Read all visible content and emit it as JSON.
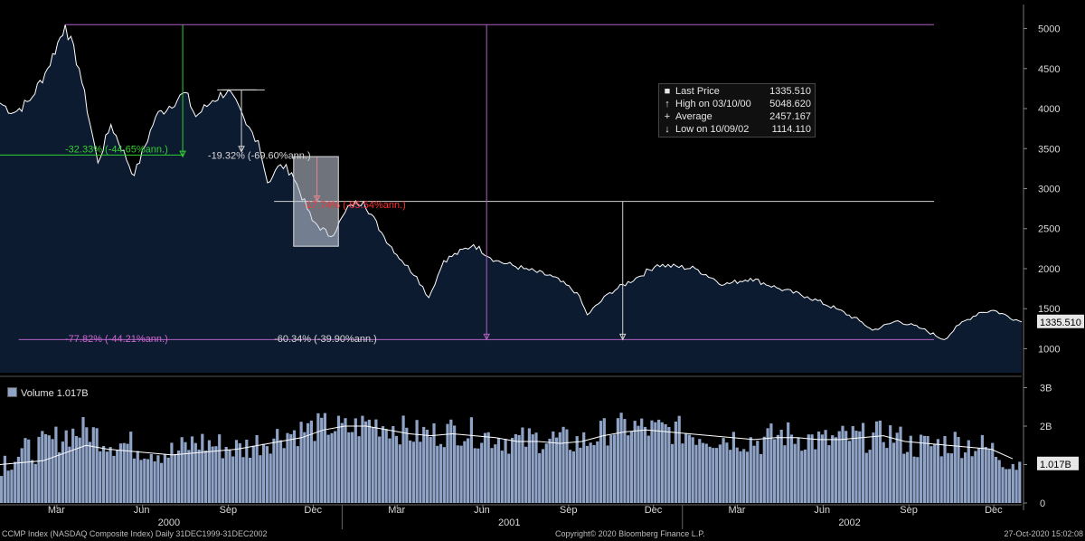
{
  "chart_data": [
    {
      "type": "area",
      "panel": "price",
      "ylim": [
        700,
        5300
      ],
      "yticks": [
        1000,
        1500,
        2000,
        2500,
        3000,
        3500,
        4000,
        4500,
        5000
      ],
      "last_value_label": "1335.510",
      "x_range": [
        "1999-12-31",
        "2002-12-31"
      ],
      "series": [
        {
          "name": "Last Price",
          "x": [
            "1999-12-31",
            "2000-01-15",
            "2000-02-01",
            "2000-02-20",
            "2000-03-10",
            "2000-03-25",
            "2000-04-14",
            "2000-04-28",
            "2000-05-23",
            "2000-06-15",
            "2000-07-17",
            "2000-07-28",
            "2000-08-15",
            "2000-09-01",
            "2000-09-20",
            "2000-10-03",
            "2000-10-13",
            "2000-10-27",
            "2000-11-08",
            "2000-11-30",
            "2000-12-20",
            "2001-01-10",
            "2001-01-24",
            "2001-02-15",
            "2001-03-06",
            "2001-03-22",
            "2001-04-04",
            "2001-04-20",
            "2001-05-22",
            "2001-06-15",
            "2001-07-15",
            "2001-08-15",
            "2001-09-10",
            "2001-09-21",
            "2001-10-15",
            "2001-11-15",
            "2001-12-05",
            "2002-01-15",
            "2002-02-15",
            "2002-03-15",
            "2002-04-15",
            "2002-05-15",
            "2002-06-15",
            "2002-07-10",
            "2002-07-24",
            "2002-08-20",
            "2002-09-15",
            "2002-10-09",
            "2002-10-25",
            "2002-11-15",
            "2002-12-01",
            "2002-12-31"
          ],
          "values": [
            4069,
            3950,
            4100,
            4500,
            5048,
            4500,
            3321,
            3800,
            3164,
            3900,
            4200,
            3900,
            4100,
            4234,
            3800,
            3600,
            3074,
            3300,
            3200,
            2600,
            2400,
            2800,
            2840,
            2400,
            2100,
            1900,
            1638,
            2100,
            2300,
            2100,
            2000,
            1900,
            1700,
            1423,
            1700,
            1900,
            2050,
            2000,
            1800,
            1880,
            1750,
            1650,
            1500,
            1350,
            1230,
            1350,
            1250,
            1114,
            1300,
            1450,
            1480,
            1335
          ]
        }
      ],
      "annotations": [
        {
          "text": "-32.33% (-44.65%ann.)",
          "color": "#2fd22f"
        },
        {
          "text": "-19.32% (-69.60%ann.)",
          "color": "#d8d8d8"
        },
        {
          "text": "-17.74% (-85.54%ann.)",
          "color": "#ff3030"
        },
        {
          "text": "-77.82% (-44.21%ann.)",
          "color": "#cc66cc"
        },
        {
          "text": "-60.34% (-39.90%ann.)",
          "color": "#d8d8d8"
        }
      ]
    },
    {
      "type": "bar",
      "panel": "volume",
      "ylim": [
        0,
        3.2
      ],
      "yticks": [
        {
          "v": 0,
          "label": "0"
        },
        {
          "v": 1,
          "label": "1B"
        },
        {
          "v": 2,
          "label": "2B"
        },
        {
          "v": 3,
          "label": "3B"
        }
      ],
      "last_value_label": "1.017B",
      "series": [
        {
          "name": "Volume",
          "unit": "B",
          "values": [
            1.1,
            1.3,
            1.5,
            1.8,
            1.9,
            1.6,
            1.5,
            1.4,
            1.3,
            1.6,
            1.5,
            1.4,
            1.6,
            1.8,
            1.9,
            2.0,
            1.9,
            2.1,
            2.0,
            1.8,
            1.8,
            1.9,
            1.8,
            1.7,
            1.6,
            1.7,
            1.6,
            1.6,
            1.9,
            2.0,
            1.9,
            1.9,
            1.8,
            1.7,
            1.7,
            1.6,
            1.8,
            1.7,
            1.6,
            1.7,
            1.7,
            1.8,
            1.5,
            1.5,
            1.6,
            1.5,
            1.3,
            1.0
          ]
        },
        {
          "name": "Volume MA",
          "values": [
            1.0,
            1.05,
            1.1,
            1.3,
            1.5,
            1.4,
            1.35,
            1.3,
            1.25,
            1.3,
            1.35,
            1.4,
            1.5,
            1.6,
            1.7,
            1.9,
            2.0,
            2.0,
            1.9,
            1.8,
            1.75,
            1.8,
            1.75,
            1.7,
            1.6,
            1.6,
            1.55,
            1.6,
            1.75,
            1.85,
            1.9,
            1.85,
            1.8,
            1.75,
            1.7,
            1.65,
            1.7,
            1.7,
            1.65,
            1.65,
            1.7,
            1.75,
            1.6,
            1.55,
            1.5,
            1.45,
            1.4,
            1.15
          ]
        }
      ]
    }
  ],
  "x_axis": {
    "month_labels": [
      "Mar",
      "Jun",
      "Sep",
      "Dec",
      "Mar",
      "Jun",
      "Sep",
      "Dec",
      "Mar",
      "Jun",
      "Sep",
      "Dec"
    ],
    "year_labels": [
      "2000",
      "2001",
      "2002"
    ]
  },
  "legend": {
    "items": [
      {
        "key": "■",
        "label": "Last Price",
        "value": "1335.510"
      },
      {
        "key": "↑",
        "label": "High on 03/10/00",
        "value": "5048.620"
      },
      {
        "key": "+",
        "label": "Average",
        "value": "2457.167"
      },
      {
        "key": "↓",
        "label": "Low on 10/09/02",
        "value": "1114.110"
      }
    ]
  },
  "volume_legend": {
    "label": "Volume 1.017B"
  },
  "footer": {
    "left": "CCMP Index (NASDAQ Composite Index)  Daily 31DEC1999-31DEC2002",
    "center": "Copyright© 2020 Bloomberg Finance L.P.",
    "right": "27-Oct-2020 15:02:08"
  },
  "colors": {
    "price_fill": "#0d1b30",
    "price_line": "#ffffff",
    "volume_bar": "#8fa3c7",
    "axis_text": "#d8d8d8",
    "max_line": "#b060c0",
    "average_line": "#d0d0d0"
  }
}
